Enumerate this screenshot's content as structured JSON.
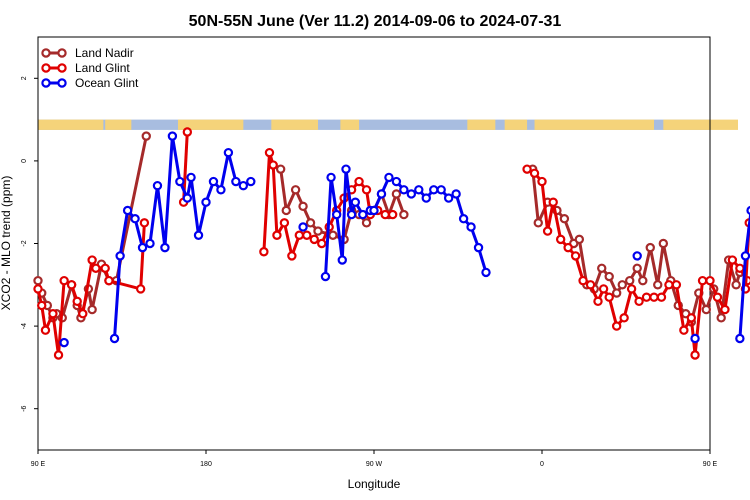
{
  "chart_data": {
    "type": "line",
    "title": "50N-55N June (Ver 11.2)   2014-09-06 to 2024-07-31",
    "xlabel": "Longitude",
    "ylabel": "XCO2 - MLO trend (ppm)",
    "xlim": [
      90,
      450
    ],
    "ylim": [
      -7,
      3
    ],
    "x_ticks": [
      {
        "value": 90,
        "label": "90 E"
      },
      {
        "value": 180,
        "label": "180"
      },
      {
        "value": 270,
        "label": "90 W"
      },
      {
        "value": 360,
        "label": "0"
      },
      {
        "value": 450,
        "label": "90 E"
      },
      {
        "value": 540,
        "label": "180"
      }
    ],
    "y_ticks": [
      {
        "value": 2,
        "label": "2"
      },
      {
        "value": 0,
        "label": "0"
      },
      {
        "value": -2,
        "label": "-2"
      },
      {
        "value": -4,
        "label": "-4"
      },
      {
        "value": -6,
        "label": "-6"
      }
    ],
    "grid": false,
    "legend_placement": "top-left",
    "land_mask_band": {
      "y_top": 1.0,
      "y_bottom": 0.75,
      "land_color": "#f5d37a",
      "ocean_color": "#a8bde0"
    },
    "series": [
      {
        "name": "Land Nadir",
        "color": "#a52a2a",
        "segments": [
          [
            [
              90,
              -2.9
            ],
            [
              92,
              -3.2
            ],
            [
              95,
              -3.5
            ],
            [
              98,
              -3.8
            ],
            [
              100,
              -3.7
            ],
            [
              103,
              -3.8
            ],
            [
              108,
              -3.0
            ],
            [
              111,
              -3.5
            ],
            [
              113,
              -3.8
            ],
            [
              117,
              -3.1
            ],
            [
              119,
              -3.6
            ],
            [
              124,
              -2.5
            ],
            [
              128,
              -2.9
            ],
            [
              132,
              -2.9
            ],
            [
              148,
              0.6
            ]
          ],
          [
            [
              220,
              -0.2
            ],
            [
              223,
              -1.2
            ],
            [
              228,
              -0.7
            ],
            [
              232,
              -1.1
            ],
            [
              236,
              -1.5
            ],
            [
              240,
              -1.7
            ],
            [
              248,
              -1.8
            ],
            [
              254,
              -1.9
            ],
            [
              258,
              -1.2
            ],
            [
              262,
              -1.3
            ],
            [
              266,
              -1.5
            ],
            [
              270,
              -1.2
            ],
            [
              274,
              -0.8
            ],
            [
              278,
              -1.3
            ],
            [
              282,
              -0.8
            ],
            [
              286,
              -1.3
            ]
          ],
          [
            [
              355,
              -0.2
            ],
            [
              358,
              -1.5
            ],
            [
              363,
              -1.0
            ],
            [
              368,
              -1.2
            ],
            [
              372,
              -1.4
            ],
            [
              377,
              -2.0
            ],
            [
              380,
              -1.9
            ],
            [
              384,
              -3.0
            ],
            [
              388,
              -3.1
            ],
            [
              392,
              -2.6
            ],
            [
              396,
              -2.8
            ],
            [
              400,
              -3.2
            ],
            [
              403,
              -3.0
            ],
            [
              407,
              -2.9
            ],
            [
              411,
              -2.6
            ],
            [
              414,
              -2.9
            ],
            [
              418,
              -2.1
            ],
            [
              422,
              -3.0
            ],
            [
              425,
              -2.0
            ],
            [
              429,
              -2.9
            ],
            [
              433,
              -3.5
            ],
            [
              437,
              -3.7
            ],
            [
              440,
              -3.9
            ],
            [
              444,
              -3.2
            ],
            [
              448,
              -3.6
            ],
            [
              452,
              -3.1
            ],
            [
              456,
              -3.8
            ],
            [
              460,
              -2.4
            ],
            [
              464,
              -3.0
            ],
            [
              466,
              -2.7
            ]
          ],
          [
            [
              479,
              0.65
            ]
          ]
        ]
      },
      {
        "name": "Land Glint",
        "color": "#e00000",
        "segments": [
          [
            [
              90,
              -3.1
            ],
            [
              92,
              -3.5
            ],
            [
              94,
              -4.1
            ],
            [
              98,
              -3.7
            ],
            [
              101,
              -4.7
            ],
            [
              104,
              -2.9
            ],
            [
              108,
              -3.0
            ],
            [
              111,
              -3.4
            ],
            [
              114,
              -3.7
            ],
            [
              119,
              -2.4
            ],
            [
              121,
              -2.6
            ],
            [
              126,
              -2.6
            ],
            [
              128,
              -2.9
            ],
            [
              145,
              -3.1
            ],
            [
              147,
              -1.5
            ]
          ],
          [
            [
              168,
              -1.0
            ],
            [
              170,
              0.7
            ]
          ],
          [
            [
              211,
              -2.2
            ],
            [
              214,
              0.2
            ],
            [
              216,
              -0.1
            ],
            [
              218,
              -1.8
            ],
            [
              222,
              -1.5
            ],
            [
              226,
              -2.3
            ],
            [
              230,
              -1.8
            ],
            [
              234,
              -1.8
            ],
            [
              238,
              -1.9
            ],
            [
              242,
              -2.0
            ],
            [
              246,
              -1.6
            ],
            [
              250,
              -1.2
            ],
            [
              254,
              -0.9
            ],
            [
              258,
              -0.7
            ],
            [
              262,
              -0.5
            ],
            [
              266,
              -0.7
            ],
            [
              268,
              -1.3
            ],
            [
              272,
              -1.2
            ],
            [
              276,
              -1.3
            ],
            [
              280,
              -1.3
            ]
          ],
          [
            [
              352,
              -0.2
            ],
            [
              356,
              -0.3
            ],
            [
              360,
              -0.5
            ],
            [
              363,
              -1.7
            ],
            [
              366,
              -1.0
            ],
            [
              370,
              -1.9
            ],
            [
              374,
              -2.1
            ],
            [
              378,
              -2.3
            ],
            [
              382,
              -2.9
            ],
            [
              386,
              -3.0
            ],
            [
              390,
              -3.4
            ],
            [
              393,
              -3.1
            ],
            [
              396,
              -3.3
            ],
            [
              400,
              -4.0
            ],
            [
              404,
              -3.8
            ],
            [
              408,
              -3.1
            ],
            [
              412,
              -3.4
            ],
            [
              416,
              -3.3
            ],
            [
              420,
              -3.3
            ],
            [
              424,
              -3.3
            ],
            [
              428,
              -3.0
            ],
            [
              432,
              -3.0
            ],
            [
              436,
              -4.1
            ],
            [
              440,
              -3.8
            ],
            [
              442,
              -4.7
            ],
            [
              446,
              -2.9
            ],
            [
              450,
              -2.9
            ],
            [
              454,
              -3.3
            ],
            [
              458,
              -3.6
            ],
            [
              462,
              -2.4
            ],
            [
              466,
              -2.6
            ],
            [
              470,
              -2.9
            ]
          ],
          [
            [
              469,
              -3.1
            ],
            [
              471,
              -1.5
            ]
          ]
        ]
      },
      {
        "name": "Ocean Glint",
        "color": "#0000ee",
        "segments": [
          [
            [
              104,
              -4.4
            ]
          ],
          [
            [
              131,
              -4.3
            ],
            [
              134,
              -2.3
            ],
            [
              138,
              -1.2
            ],
            [
              142,
              -1.4
            ],
            [
              146,
              -2.1
            ],
            [
              150,
              -2.0
            ],
            [
              154,
              -0.6
            ],
            [
              158,
              -2.1
            ],
            [
              162,
              0.6
            ],
            [
              166,
              -0.5
            ],
            [
              170,
              -0.9
            ],
            [
              172,
              -0.4
            ],
            [
              176,
              -1.8
            ],
            [
              180,
              -1.0
            ],
            [
              184,
              -0.5
            ],
            [
              188,
              -0.7
            ],
            [
              192,
              0.2
            ],
            [
              196,
              -0.5
            ],
            [
              200,
              -0.6
            ],
            [
              204,
              -0.5
            ]
          ],
          [
            [
              232,
              -1.6
            ]
          ],
          [
            [
              244,
              -2.8
            ],
            [
              247,
              -0.4
            ],
            [
              250,
              -1.3
            ],
            [
              253,
              -2.4
            ],
            [
              255,
              -0.2
            ],
            [
              258,
              -1.3
            ],
            [
              260,
              -1.0
            ],
            [
              264,
              -1.3
            ],
            [
              268,
              -1.2
            ],
            [
              270,
              -1.2
            ],
            [
              274,
              -0.8
            ],
            [
              278,
              -0.4
            ],
            [
              282,
              -0.5
            ],
            [
              286,
              -0.7
            ],
            [
              290,
              -0.8
            ],
            [
              294,
              -0.7
            ],
            [
              298,
              -0.9
            ],
            [
              302,
              -0.7
            ],
            [
              306,
              -0.7
            ],
            [
              310,
              -0.9
            ],
            [
              314,
              -0.8
            ],
            [
              318,
              -1.4
            ],
            [
              322,
              -1.6
            ],
            [
              326,
              -2.1
            ],
            [
              330,
              -2.7
            ]
          ],
          [
            [
              411,
              -2.3
            ]
          ],
          [
            [
              442,
              -4.3
            ]
          ],
          [
            [
              466,
              -4.3
            ],
            [
              469,
              -2.3
            ],
            [
              472,
              -1.2
            ],
            [
              476,
              -1.4
            ],
            [
              480,
              -2.1
            ],
            [
              484,
              -2.0
            ],
            [
              488,
              -0.6
            ],
            [
              492,
              -2.1
            ],
            [
              496,
              0.6
            ]
          ]
        ]
      }
    ]
  }
}
